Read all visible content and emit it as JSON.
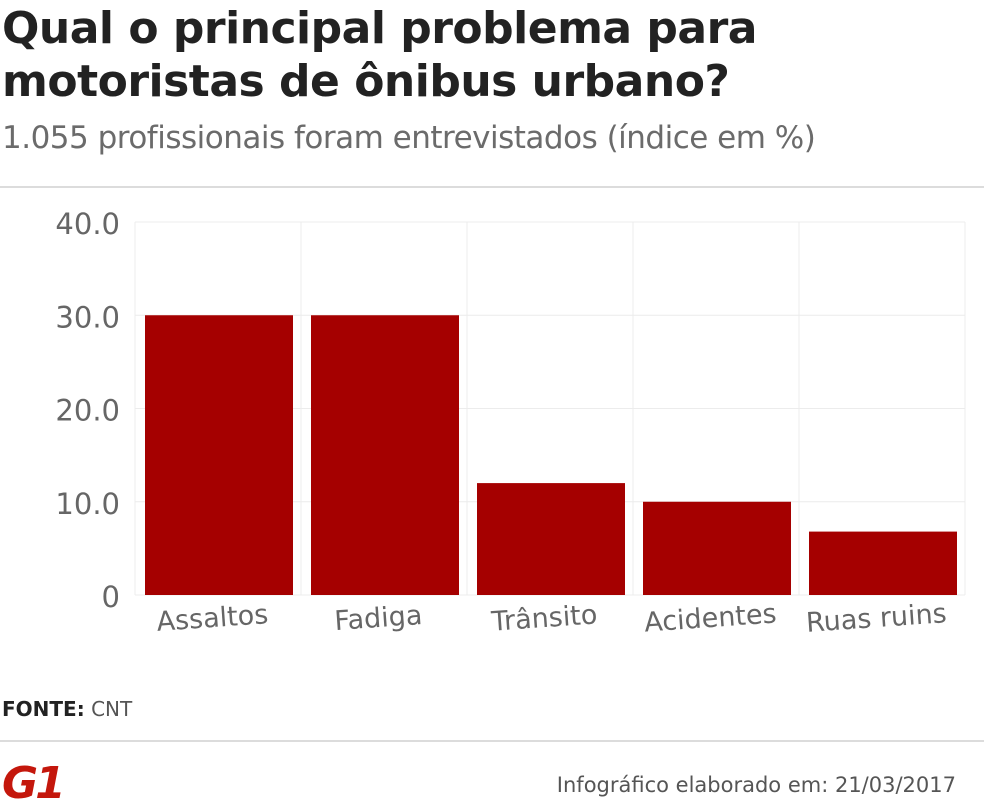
{
  "header": {
    "title": "Qual o principal problema para motoristas de ônibus urbano?",
    "subtitle": "1.055 profissionais foram entrevistados (índice em %)"
  },
  "chart_data": {
    "type": "bar",
    "categories": [
      "Assaltos",
      "Fadiga",
      "Trânsito",
      "Acidentes",
      "Ruas ruins"
    ],
    "values": [
      30.0,
      30.0,
      12.0,
      10.0,
      6.8
    ],
    "ylim": [
      0,
      40
    ],
    "yticks": [
      0,
      10,
      20,
      30,
      40
    ],
    "ytick_labels": [
      "0",
      "10.0",
      "20.0",
      "30.0",
      "40.0"
    ],
    "grid": true,
    "bar_color": "#a50000"
  },
  "footer": {
    "source_label": "FONTE:",
    "source_value": "CNT",
    "logo_text": "G1",
    "logo_color": "#c4170c",
    "credit": "Infográfico elaborado em: 21/03/2017"
  }
}
